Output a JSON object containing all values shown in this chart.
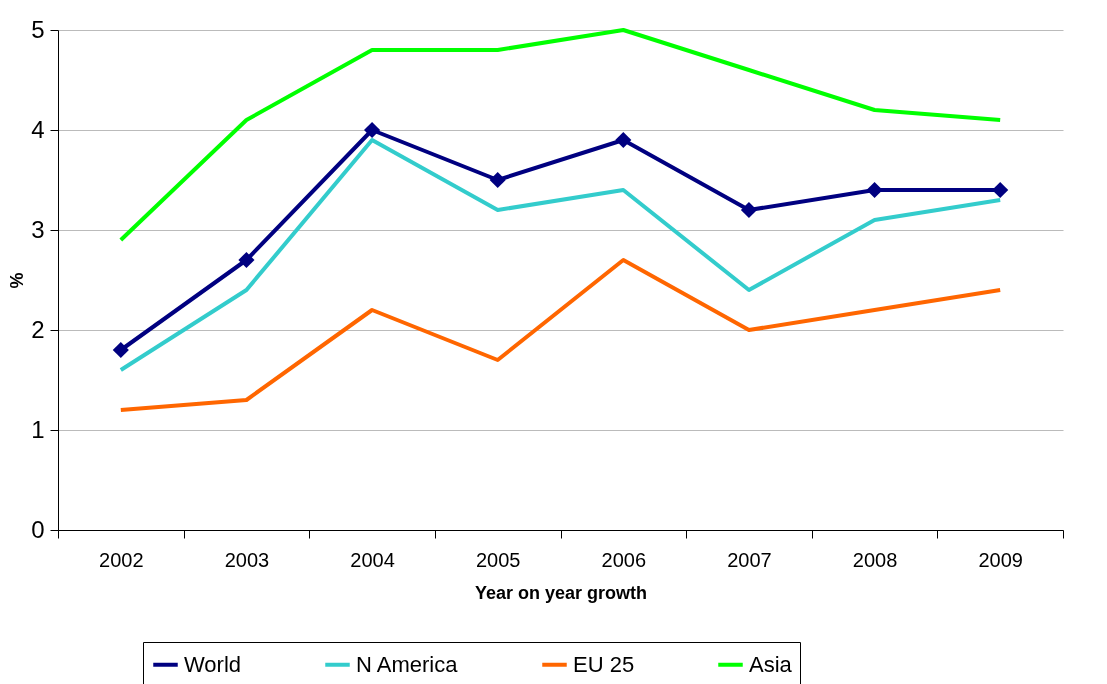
{
  "chart_data": {
    "type": "line",
    "xlabel": "Year on year growth",
    "ylabel": "%",
    "categories": [
      "2002",
      "2003",
      "2004",
      "2005",
      "2006",
      "2007",
      "2008",
      "2009"
    ],
    "series": [
      {
        "name": "World",
        "color": "#000080",
        "marker": "diamond",
        "values": [
          1.8,
          2.7,
          4.0,
          3.5,
          3.9,
          3.2,
          3.4,
          3.4
        ]
      },
      {
        "name": "N America",
        "color": "#33cccc",
        "marker": "none",
        "values": [
          1.6,
          2.4,
          3.9,
          3.2,
          3.4,
          2.4,
          3.1,
          3.3
        ]
      },
      {
        "name": "EU 25",
        "color": "#ff6600",
        "marker": "none",
        "values": [
          1.2,
          1.3,
          2.2,
          1.7,
          2.7,
          2.0,
          2.2,
          2.4
        ]
      },
      {
        "name": "Asia",
        "color": "#00ff00",
        "marker": "none",
        "values": [
          2.9,
          4.1,
          4.8,
          4.8,
          5.0,
          4.6,
          4.2,
          4.1
        ]
      }
    ],
    "ylim": [
      0,
      5
    ],
    "yticks": [
      0,
      1,
      2,
      3,
      4,
      5
    ],
    "grid": "y",
    "legend": "bottom",
    "line_style": "solid"
  }
}
